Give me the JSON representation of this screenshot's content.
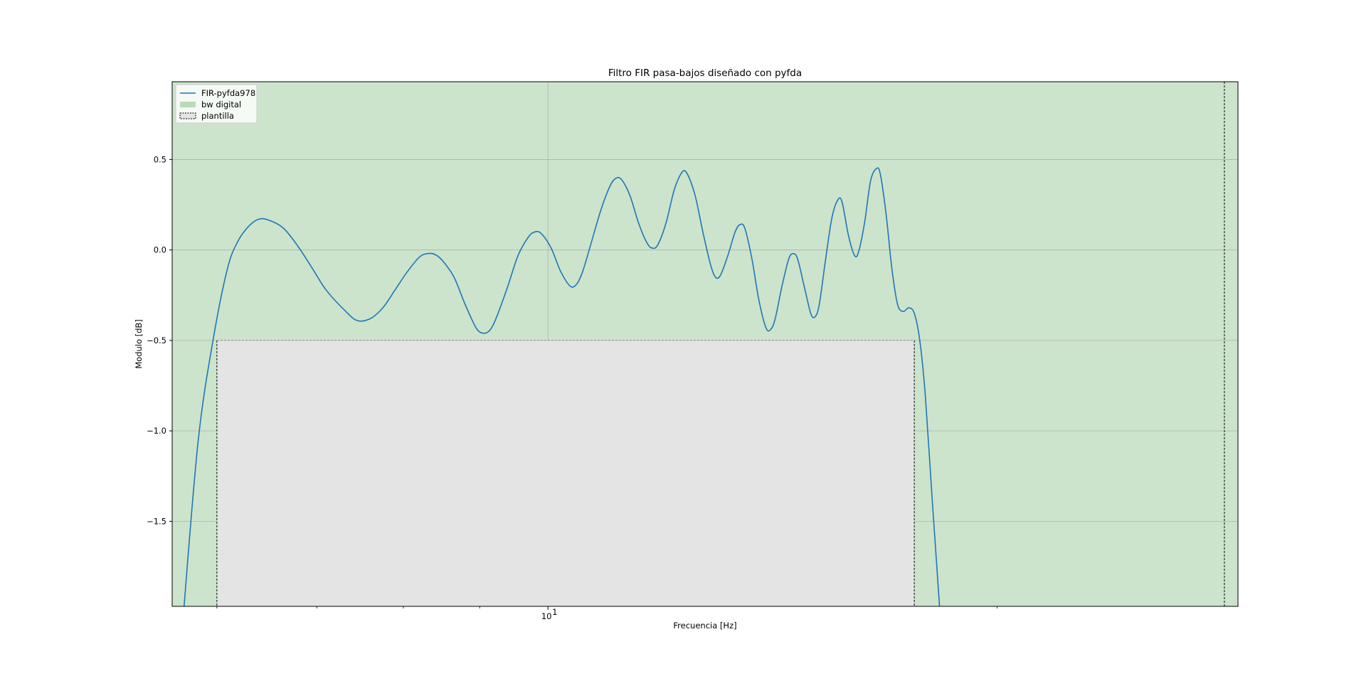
{
  "chart_data": {
    "type": "line",
    "title": "Filtro FIR pasa-bajos diseñado con pyfda",
    "xlabel": "Frecuencia [Hz]",
    "ylabel": "Modulo [dB]",
    "xscale": "log",
    "xlim": [
      5.6,
      29
    ],
    "ylim": [
      -1.97,
      0.93
    ],
    "grid": true,
    "legend_position": "top-left",
    "x_tick_labels": [
      {
        "value": 10,
        "label": "10",
        "exp": "1"
      }
    ],
    "y_ticks": [
      {
        "value": 0.5,
        "label": "0.5"
      },
      {
        "value": 0.0,
        "label": "0.0"
      },
      {
        "value": -0.5,
        "label": "−0.5"
      },
      {
        "value": -1.0,
        "label": "−1.0"
      },
      {
        "value": -1.5,
        "label": "−1.5"
      }
    ],
    "series": [
      {
        "name": "FIR-pyfda978",
        "color": "#1f77b4",
        "points": [
          [
            5.7,
            -2.0
          ],
          [
            5.83,
            -1.05
          ],
          [
            5.97,
            -0.48
          ],
          [
            6.1,
            -0.1
          ],
          [
            6.2,
            0.05
          ],
          [
            6.3,
            0.13
          ],
          [
            6.4,
            0.17
          ],
          [
            6.5,
            0.165
          ],
          [
            6.65,
            0.12
          ],
          [
            6.8,
            0.02
          ],
          [
            6.95,
            -0.1
          ],
          [
            7.1,
            -0.22
          ],
          [
            7.3,
            -0.33
          ],
          [
            7.45,
            -0.39
          ],
          [
            7.6,
            -0.38
          ],
          [
            7.75,
            -0.32
          ],
          [
            7.9,
            -0.22
          ],
          [
            8.05,
            -0.12
          ],
          [
            8.2,
            -0.04
          ],
          [
            8.3,
            -0.02
          ],
          [
            8.4,
            -0.025
          ],
          [
            8.5,
            -0.06
          ],
          [
            8.65,
            -0.15
          ],
          [
            8.8,
            -0.3
          ],
          [
            8.95,
            -0.43
          ],
          [
            9.05,
            -0.46
          ],
          [
            9.15,
            -0.44
          ],
          [
            9.25,
            -0.36
          ],
          [
            9.4,
            -0.2
          ],
          [
            9.55,
            -0.03
          ],
          [
            9.7,
            0.07
          ],
          [
            9.8,
            0.1
          ],
          [
            9.9,
            0.09
          ],
          [
            10.05,
            0.01
          ],
          [
            10.2,
            -0.12
          ],
          [
            10.35,
            -0.2
          ],
          [
            10.45,
            -0.19
          ],
          [
            10.55,
            -0.12
          ],
          [
            10.7,
            0.05
          ],
          [
            10.85,
            0.22
          ],
          [
            11.0,
            0.35
          ],
          [
            11.1,
            0.395
          ],
          [
            11.2,
            0.39
          ],
          [
            11.35,
            0.3
          ],
          [
            11.5,
            0.15
          ],
          [
            11.65,
            0.04
          ],
          [
            11.75,
            0.01
          ],
          [
            11.85,
            0.03
          ],
          [
            12.0,
            0.15
          ],
          [
            12.15,
            0.33
          ],
          [
            12.3,
            0.43
          ],
          [
            12.4,
            0.42
          ],
          [
            12.55,
            0.3
          ],
          [
            12.7,
            0.1
          ],
          [
            12.85,
            -0.08
          ],
          [
            12.95,
            -0.15
          ],
          [
            13.05,
            -0.14
          ],
          [
            13.2,
            -0.03
          ],
          [
            13.35,
            0.1
          ],
          [
            13.45,
            0.14
          ],
          [
            13.55,
            0.12
          ],
          [
            13.7,
            -0.05
          ],
          [
            13.85,
            -0.28
          ],
          [
            14.0,
            -0.43
          ],
          [
            14.1,
            -0.44
          ],
          [
            14.2,
            -0.38
          ],
          [
            14.35,
            -0.2
          ],
          [
            14.5,
            -0.05
          ],
          [
            14.6,
            -0.02
          ],
          [
            14.7,
            -0.05
          ],
          [
            14.85,
            -0.2
          ],
          [
            15.0,
            -0.35
          ],
          [
            15.1,
            -0.37
          ],
          [
            15.2,
            -0.3
          ],
          [
            15.35,
            -0.05
          ],
          [
            15.5,
            0.18
          ],
          [
            15.65,
            0.28
          ],
          [
            15.75,
            0.26
          ],
          [
            15.9,
            0.08
          ],
          [
            16.05,
            -0.03
          ],
          [
            16.15,
            -0.01
          ],
          [
            16.3,
            0.15
          ],
          [
            16.45,
            0.38
          ],
          [
            16.6,
            0.45
          ],
          [
            16.7,
            0.42
          ],
          [
            16.85,
            0.2
          ],
          [
            17.0,
            -0.1
          ],
          [
            17.15,
            -0.3
          ],
          [
            17.3,
            -0.34
          ],
          [
            17.45,
            -0.32
          ],
          [
            17.6,
            -0.35
          ],
          [
            17.75,
            -0.5
          ],
          [
            17.9,
            -0.8
          ],
          [
            18.1,
            -1.4
          ],
          [
            18.3,
            -1.97
          ]
        ]
      }
    ],
    "bands": [
      {
        "name": "bw digital",
        "color": "#cce4cc",
        "x_range": [
          5.6,
          29
        ],
        "y_range": [
          -1.97,
          0.93
        ]
      },
      {
        "name": "plantilla",
        "color": "#e4e4e4",
        "x_range": [
          6.0,
          17.6
        ],
        "y_range": [
          -1.97,
          -0.5
        ]
      }
    ],
    "vlines": [
      {
        "x": 28.4
      }
    ]
  }
}
